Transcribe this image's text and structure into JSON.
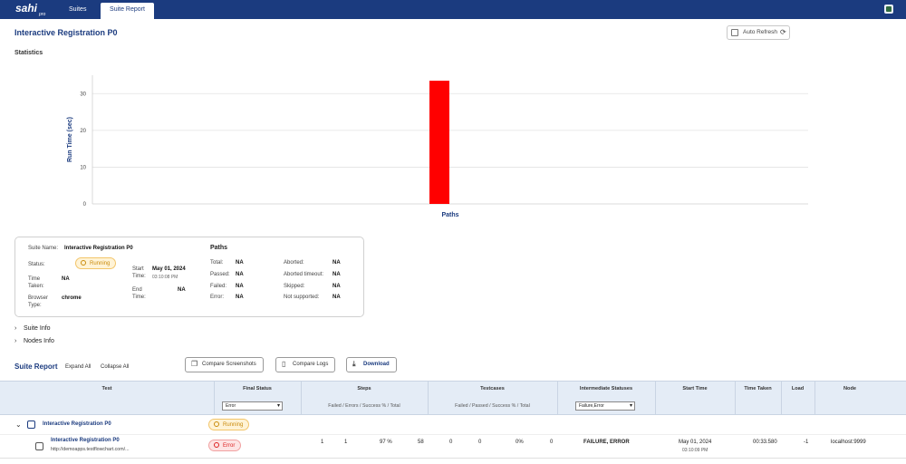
{
  "header": {
    "logo_text": "sahi pro",
    "tabs": [
      {
        "label": "Suites",
        "active": false
      },
      {
        "label": "Suite Report",
        "active": true
      }
    ]
  },
  "page": {
    "title": "Interactive Registration P0",
    "auto_refresh_label": "Auto Refresh",
    "statistics_label": "Statistics"
  },
  "chart_data": {
    "type": "bar",
    "categories": [
      ""
    ],
    "values": [
      33.5
    ],
    "xlabel": "Paths",
    "ylabel": "Run Time (sec)",
    "ylim": [
      0,
      35
    ],
    "yticks": [
      0,
      10,
      20,
      30
    ],
    "grid": true,
    "bar_color": "#ff0000"
  },
  "summary": {
    "suite_name_label": "Suite Name:",
    "suite_name": "Interactive Registration P0",
    "status_label": "Status:",
    "status": "Running",
    "time_taken_label": "Time Taken:",
    "time_taken": "NA",
    "browser_type_label": "Browser Type:",
    "browser_type": "chrome",
    "start_time_label": "Start Time:",
    "start_date": "May 01, 2024",
    "start_time": "03:10:08 PM",
    "end_time_label": "End Time:",
    "end_time": "NA",
    "paths_title": "Paths",
    "paths": {
      "total_label": "Total:",
      "total": "NA",
      "passed_label": "Passed:",
      "passed": "NA",
      "failed_label": "Failed:",
      "failed": "NA",
      "error_label": "Error:",
      "error": "NA",
      "aborted_label": "Aborted:",
      "aborted": "NA",
      "aborted_timeout_label": "Aborted timeout:",
      "aborted_timeout": "NA",
      "skipped_label": "Skipped:",
      "skipped": "NA",
      "not_supported_label": "Not supported:",
      "not_supported": "NA"
    }
  },
  "sections": {
    "suite_info": "Suite Info",
    "nodes_info": "Nodes Info"
  },
  "report": {
    "title": "Suite Report",
    "expand_all": "Expand All",
    "collapse_all": "Collapse All",
    "compare_screenshots": "Compare Screenshots",
    "compare_logs": "Compare Logs",
    "download": "Download"
  },
  "table": {
    "headers": {
      "test": "Test",
      "final_status": "Final Status",
      "steps": "Steps",
      "testcases": "Testcases",
      "intermediate_statuses": "Intermediate Statuses",
      "start_time": "Start Time",
      "time_taken": "Time Taken",
      "load": "Load",
      "node": "Node"
    },
    "steps_sub": "Failed / Errors / Success % / Total",
    "testcases_sub": "Failed / Passed / Success % / Total",
    "final_status_filter": "Error",
    "intermediate_filter": "Failure,Error",
    "group": {
      "name": "Interactive Registration P0",
      "status": "Running"
    },
    "row": {
      "name": "Interactive Registration P0",
      "url": "http://demoapps.testflowchart.com/...",
      "status": "Error",
      "steps_failed": "1",
      "steps_errors": "1",
      "steps_success": "97 %",
      "steps_total": "58",
      "tc_failed": "0",
      "tc_passed": "0",
      "tc_success": "0%",
      "tc_total": "0",
      "intermediate": "FAILURE, ERROR",
      "start_date": "May 01, 2024",
      "start_time": "03:10:09 PM",
      "time_taken": "00:33.580",
      "load": "-1",
      "node": "localhost:9999"
    }
  }
}
